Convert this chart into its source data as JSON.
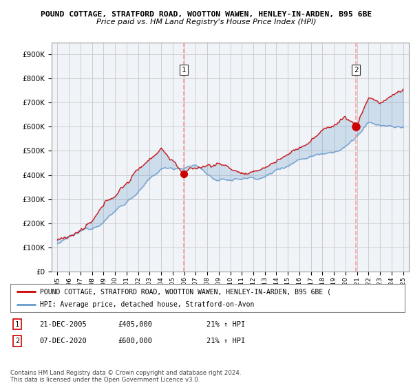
{
  "title": "POUND COTTAGE, STRATFORD ROAD, WOOTTON WAWEN, HENLEY-IN-ARDEN, B95 6BE",
  "subtitle": "Price paid vs. HM Land Registry's House Price Index (HPI)",
  "ylabel_ticks": [
    "£0",
    "£100K",
    "£200K",
    "£300K",
    "£400K",
    "£500K",
    "£600K",
    "£700K",
    "£800K",
    "£900K"
  ],
  "ytick_values": [
    0,
    100000,
    200000,
    300000,
    400000,
    500000,
    600000,
    700000,
    800000,
    900000
  ],
  "ylim": [
    0,
    950000
  ],
  "sale1_date_num": 2005.97,
  "sale1_price": 405000,
  "sale2_date_num": 2020.92,
  "sale2_price": 600000,
  "legend_line1": "POUND COTTAGE, STRATFORD ROAD, WOOTTON WAWEN, HENLEY-IN-ARDEN, B95 6BE (",
  "legend_line2": "HPI: Average price, detached house, Stratford-on-Avon",
  "table_row1": [
    "1",
    "21-DEC-2005",
    "£405,000",
    "21% ↑ HPI"
  ],
  "table_row2": [
    "2",
    "07-DEC-2020",
    "£600,000",
    "21% ↑ HPI"
  ],
  "footer": "Contains HM Land Registry data © Crown copyright and database right 2024.\nThis data is licensed under the Open Government Licence v3.0.",
  "red_color": "#cc0000",
  "blue_color": "#6699cc",
  "fill_color": "#ddeeff",
  "dashed_color": "#ff9999",
  "grid_color": "#cccccc",
  "bg_color": "#ffffff",
  "plot_bg_color": "#f0f4f8"
}
